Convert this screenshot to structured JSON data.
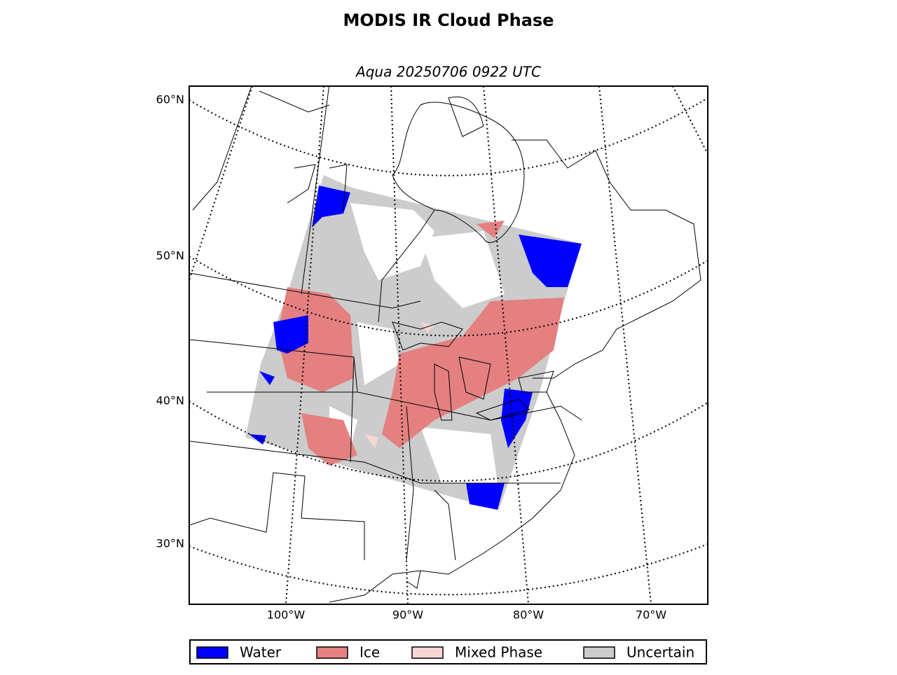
{
  "title": "MODIS IR Cloud Phase",
  "subtitle": "Aqua 20250706 0922 UTC",
  "map": {
    "lat_labels": [
      "60°N",
      "50°N",
      "40°N",
      "30°N"
    ],
    "lon_labels": [
      "100°W",
      "90°W",
      "80°W",
      "70°W"
    ]
  },
  "legend": [
    {
      "name": "Water",
      "color": "#0000ff"
    },
    {
      "name": "Ice",
      "color": "#e48080"
    },
    {
      "name": "Mixed Phase",
      "color": "#f7d6d6"
    },
    {
      "name": "Uncertain",
      "color": "#cccccc"
    }
  ]
}
